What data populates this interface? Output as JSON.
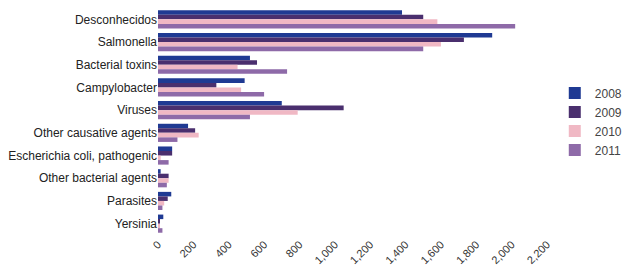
{
  "chart_data": {
    "type": "bar",
    "orientation": "horizontal",
    "categories": [
      "Desconhecidos",
      "Salmonella",
      "Bacterial toxins",
      "Campylobacter",
      "Viruses",
      "Other causative agents",
      "Escherichia coli, pathogenic",
      "Other bacterial agents",
      "Parasites",
      "Yersinia"
    ],
    "series": [
      {
        "name": "2008",
        "color": "#1f3a93",
        "values": [
          1380,
          1890,
          520,
          490,
          700,
          170,
          80,
          15,
          75,
          30
        ]
      },
      {
        "name": "2009",
        "color": "#4a2f6e",
        "values": [
          1500,
          1730,
          560,
          330,
          1050,
          210,
          80,
          60,
          55,
          10
        ]
      },
      {
        "name": "2010",
        "color": "#f0b8c4",
        "values": [
          1580,
          1600,
          450,
          470,
          790,
          230,
          15,
          60,
          35,
          10
        ]
      },
      {
        "name": "2011",
        "color": "#8e6aa8",
        "values": [
          2020,
          1500,
          730,
          600,
          520,
          110,
          60,
          50,
          25,
          25
        ]
      }
    ],
    "xlim": [
      0,
      2200
    ],
    "xticks": [
      0,
      200,
      400,
      600,
      800,
      {
        "value": 1000,
        "label": "1,000"
      },
      {
        "value": 1200,
        "label": "1,200"
      },
      {
        "value": 1400,
        "label": "1,400"
      },
      {
        "value": 1600,
        "label": "1,600"
      },
      {
        "value": 1800,
        "label": "1,800"
      },
      {
        "value": 2000,
        "label": "2,000"
      },
      {
        "value": 2200,
        "label": "2,200"
      }
    ],
    "grid": false,
    "legend": "right"
  }
}
